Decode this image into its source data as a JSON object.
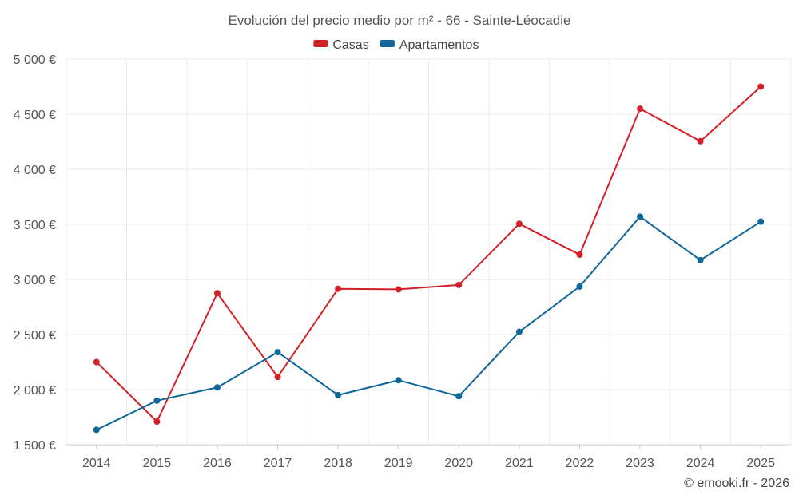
{
  "chart_data": {
    "type": "line",
    "title": "Evolución del precio medio por m² - 66 - Sainte-Léocadie",
    "categories": [
      "2014",
      "2015",
      "2016",
      "2017",
      "2018",
      "2019",
      "2020",
      "2021",
      "2022",
      "2023",
      "2024",
      "2025"
    ],
    "series": [
      {
        "name": "Casas",
        "color": "#d32027",
        "values": [
          2250,
          1710,
          2875,
          2115,
          2915,
          2910,
          2950,
          3505,
          3225,
          4550,
          4255,
          4750
        ]
      },
      {
        "name": "Apartamentos",
        "color": "#0e6699",
        "values": [
          1635,
          1900,
          2020,
          2340,
          1950,
          2085,
          1940,
          2525,
          2935,
          3570,
          3175,
          3525
        ]
      }
    ],
    "ylim": [
      1500,
      5000
    ],
    "yticks": [
      1500,
      2000,
      2500,
      3000,
      3500,
      4000,
      4500,
      5000
    ],
    "ytick_labels": [
      "1 500 €",
      "2 000 €",
      "2 500 €",
      "3 000 €",
      "3 500 €",
      "4 000 €",
      "4 500 €",
      "5 000 €"
    ],
    "xlabel": "",
    "ylabel": "",
    "grid": true,
    "legend_position": "top-center"
  },
  "credit": "© emooki.fr - 2026"
}
